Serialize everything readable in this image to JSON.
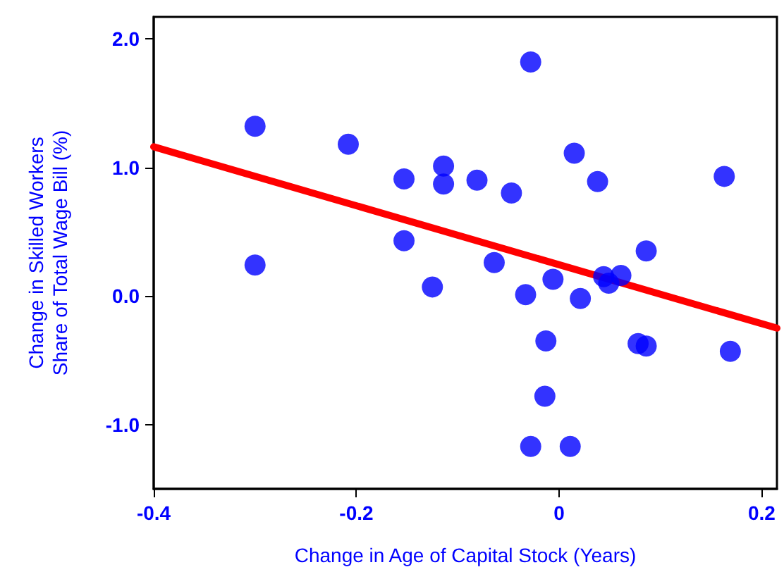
{
  "chart_data": {
    "type": "scatter",
    "xlabel": "Change in Age of Capital Stock (Years)",
    "ylabel": "Change in Skilled Workers\nShare of Total Wage Bill (%)",
    "xlim": [
      -0.4,
      0.215
    ],
    "xticks": [
      -0.4,
      -0.2,
      0,
      0.2
    ],
    "ylim": [
      -1.5,
      2.17
    ],
    "yticks": [
      {
        "value": -1,
        "label": "-1.0"
      },
      {
        "value": 0,
        "label": "0.0"
      },
      {
        "value": 1,
        "label": "1.0"
      },
      {
        "value": 2,
        "label": "2.0"
      }
    ],
    "grid": false,
    "marker": "circle",
    "series": [
      {
        "color": "#0000ff",
        "x": [
          -0.3,
          -0.3,
          -0.208,
          -0.153,
          -0.153,
          -0.114,
          -0.114,
          -0.125,
          -0.081,
          -0.064,
          -0.047,
          -0.028,
          -0.033,
          -0.006,
          -0.013,
          -0.014,
          -0.028,
          0.011,
          0.015,
          0.021,
          0.038,
          0.044,
          0.049,
          0.061,
          0.078,
          0.086,
          0.086,
          0.163,
          0.169
        ],
        "values": [
          1.32,
          0.24,
          1.18,
          0.91,
          0.43,
          1.01,
          0.87,
          0.07,
          0.9,
          0.26,
          0.8,
          1.82,
          0.01,
          0.13,
          -0.35,
          -0.78,
          -1.17,
          -1.17,
          1.11,
          -0.02,
          0.89,
          0.15,
          0.1,
          0.16,
          -0.37,
          -0.39,
          0.35,
          0.93,
          -0.43
        ]
      },
      {
        "type": "line",
        "marker": "none",
        "color": "#ff0000",
        "x": [
          -0.4,
          0.215
        ],
        "values": [
          1.16,
          -0.25
        ]
      }
    ]
  }
}
